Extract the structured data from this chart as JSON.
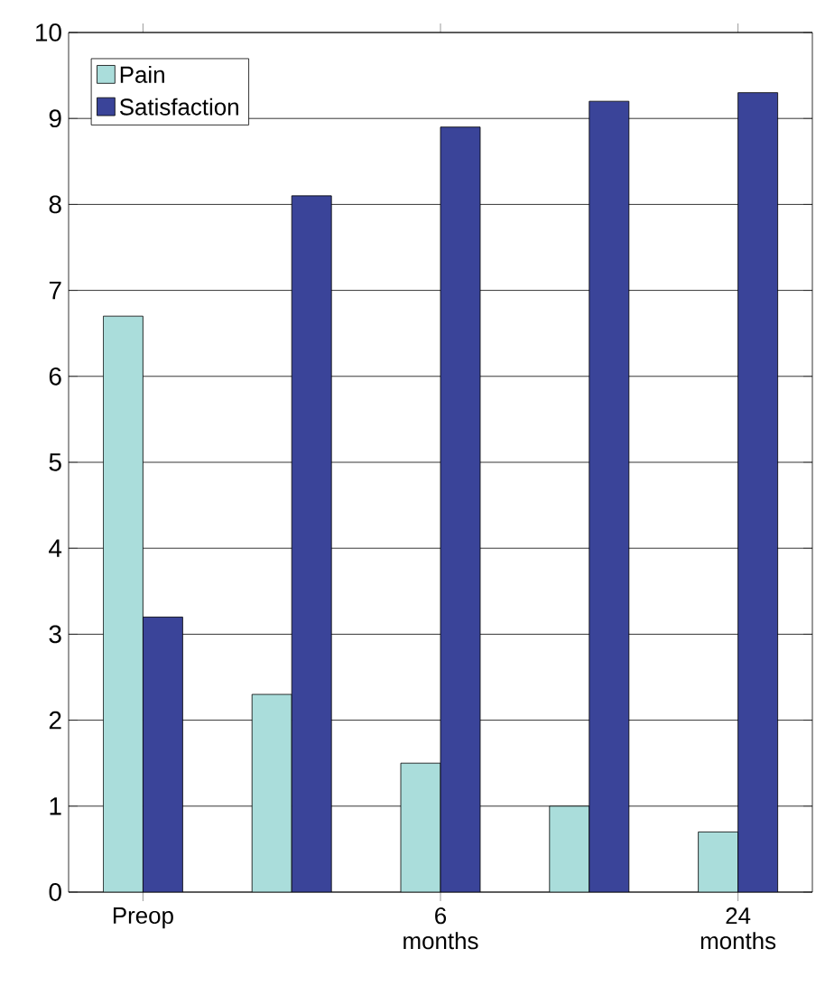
{
  "chart_data": {
    "type": "bar",
    "categories": [
      "Preop",
      null,
      "6 months",
      null,
      "24 months"
    ],
    "series": [
      {
        "name": "Pain",
        "color": "#aadddb",
        "values": [
          6.7,
          2.3,
          1.5,
          1.0,
          0.7
        ]
      },
      {
        "name": "Satisfaction",
        "color": "#3a4499",
        "values": [
          3.2,
          8.1,
          8.9,
          9.2,
          9.3
        ]
      }
    ],
    "ylim": [
      0,
      10
    ],
    "yticks": [
      0,
      1,
      2,
      3,
      4,
      5,
      6,
      7,
      8,
      9,
      10
    ],
    "grid": "y",
    "legend": "top left"
  }
}
